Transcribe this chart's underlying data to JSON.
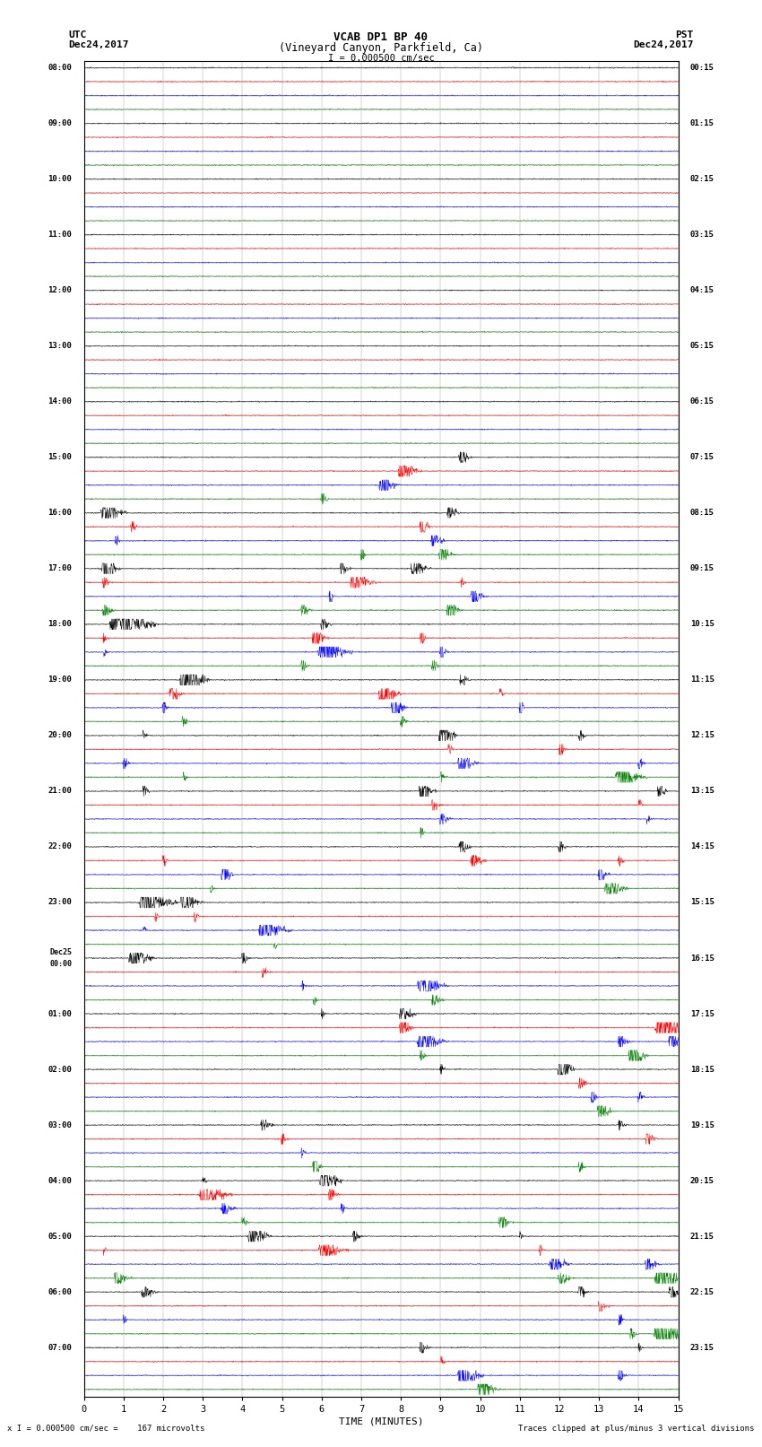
{
  "title_line1": "VCAB DP1 BP 40",
  "title_line2": "(Vineyard Canyon, Parkfield, Ca)",
  "scale_text": "I = 0.000500 cm/sec",
  "utc_label": "UTC",
  "utc_date": "Dec24,2017",
  "pst_label": "PST",
  "pst_date": "Dec24,2017",
  "xlabel": "TIME (MINUTES)",
  "footer_left": "x I = 0.000500 cm/sec =    167 microvolts",
  "footer_right": "Traces clipped at plus/minus 3 vertical divisions",
  "utc_times": [
    "08:00",
    "09:00",
    "10:00",
    "11:00",
    "12:00",
    "13:00",
    "14:00",
    "15:00",
    "16:00",
    "17:00",
    "18:00",
    "19:00",
    "20:00",
    "21:00",
    "22:00",
    "23:00",
    "Dec25\n00:00",
    "01:00",
    "02:00",
    "03:00",
    "04:00",
    "05:00",
    "06:00",
    "07:00"
  ],
  "pst_times": [
    "00:15",
    "01:15",
    "02:15",
    "03:15",
    "04:15",
    "05:15",
    "06:15",
    "07:15",
    "08:15",
    "09:15",
    "10:15",
    "11:15",
    "12:15",
    "13:15",
    "14:15",
    "15:15",
    "16:15",
    "17:15",
    "18:15",
    "19:15",
    "20:15",
    "21:15",
    "22:15",
    "23:15"
  ],
  "trace_colors": [
    "black",
    "red",
    "blue",
    "green"
  ],
  "background_color": "#f0f0f0",
  "plot_bg_color": "#d8d8d8",
  "grid_color": "#888888",
  "n_hour_blocks": 24,
  "traces_per_block": 4,
  "time_minutes": 15,
  "n_pts": 1800,
  "amp_noise": 0.018,
  "amp_clip": 0.38,
  "seed": 12345,
  "event_rows": [
    [
      28,
      0,
      9.5,
      0.9
    ],
    [
      29,
      1,
      8.0,
      1.2
    ],
    [
      30,
      2,
      7.5,
      1.0
    ],
    [
      31,
      3,
      6.0,
      0.8
    ],
    [
      32,
      0,
      0.5,
      1.4
    ],
    [
      32,
      0,
      9.2,
      0.7
    ],
    [
      33,
      1,
      1.2,
      0.5
    ],
    [
      33,
      1,
      8.5,
      1.3
    ],
    [
      34,
      2,
      0.8,
      0.6
    ],
    [
      34,
      2,
      8.8,
      1.1
    ],
    [
      35,
      3,
      7.0,
      0.9
    ],
    [
      35,
      3,
      9.0,
      1.0
    ],
    [
      36,
      0,
      0.5,
      1.5
    ],
    [
      36,
      0,
      6.5,
      0.8
    ],
    [
      36,
      0,
      8.3,
      1.0
    ],
    [
      37,
      1,
      0.5,
      0.6
    ],
    [
      37,
      1,
      6.8,
      1.4
    ],
    [
      37,
      1,
      9.5,
      0.8
    ],
    [
      38,
      2,
      6.2,
      1.2
    ],
    [
      38,
      2,
      9.8,
      0.9
    ],
    [
      39,
      3,
      0.5,
      0.7
    ],
    [
      39,
      3,
      5.5,
      0.8
    ],
    [
      39,
      3,
      9.2,
      1.0
    ],
    [
      40,
      0,
      0.8,
      2.2
    ],
    [
      40,
      0,
      6.0,
      0.9
    ],
    [
      41,
      1,
      0.5,
      0.5
    ],
    [
      41,
      1,
      5.8,
      1.5
    ],
    [
      41,
      1,
      8.5,
      0.7
    ],
    [
      42,
      2,
      0.5,
      0.4
    ],
    [
      42,
      2,
      6.0,
      1.8
    ],
    [
      42,
      2,
      9.0,
      0.8
    ],
    [
      43,
      3,
      5.5,
      0.9
    ],
    [
      43,
      3,
      8.8,
      0.6
    ],
    [
      44,
      0,
      2.5,
      2.5
    ],
    [
      44,
      0,
      9.5,
      1.0
    ],
    [
      45,
      1,
      2.2,
      1.0
    ],
    [
      45,
      1,
      7.5,
      2.0
    ],
    [
      45,
      1,
      10.5,
      0.7
    ],
    [
      46,
      2,
      2.0,
      0.8
    ],
    [
      46,
      2,
      7.8,
      1.5
    ],
    [
      46,
      2,
      11.0,
      0.9
    ],
    [
      47,
      3,
      2.5,
      0.6
    ],
    [
      47,
      3,
      8.0,
      0.7
    ],
    [
      48,
      0,
      1.5,
      0.5
    ],
    [
      48,
      0,
      9.0,
      1.8
    ],
    [
      48,
      0,
      12.5,
      0.6
    ],
    [
      49,
      1,
      9.2,
      0.8
    ],
    [
      49,
      1,
      12.0,
      1.2
    ],
    [
      50,
      2,
      1.0,
      0.9
    ],
    [
      50,
      2,
      9.5,
      1.0
    ],
    [
      50,
      2,
      14.0,
      0.7
    ],
    [
      51,
      3,
      2.5,
      0.5
    ],
    [
      51,
      3,
      9.0,
      0.8
    ],
    [
      51,
      3,
      13.5,
      1.5
    ],
    [
      52,
      0,
      1.5,
      0.8
    ],
    [
      52,
      0,
      8.5,
      1.5
    ],
    [
      52,
      0,
      14.5,
      0.9
    ],
    [
      53,
      1,
      8.8,
      0.7
    ],
    [
      53,
      1,
      14.0,
      0.6
    ],
    [
      54,
      2,
      9.0,
      0.8
    ],
    [
      54,
      2,
      14.2,
      0.5
    ],
    [
      55,
      3,
      8.5,
      0.6
    ],
    [
      56,
      0,
      9.5,
      1.2
    ],
    [
      56,
      0,
      12.0,
      0.7
    ],
    [
      57,
      1,
      2.0,
      0.5
    ],
    [
      57,
      1,
      9.8,
      1.0
    ],
    [
      57,
      1,
      13.5,
      0.6
    ],
    [
      58,
      2,
      3.5,
      1.8
    ],
    [
      58,
      2,
      13.0,
      0.8
    ],
    [
      59,
      3,
      3.2,
      0.4
    ],
    [
      59,
      3,
      13.2,
      1.4
    ],
    [
      60,
      0,
      1.5,
      1.8
    ],
    [
      60,
      0,
      2.5,
      1.2
    ],
    [
      61,
      1,
      1.8,
      0.5
    ],
    [
      61,
      1,
      2.8,
      0.9
    ],
    [
      62,
      2,
      1.5,
      0.4
    ],
    [
      62,
      2,
      4.5,
      1.6
    ],
    [
      63,
      3,
      4.8,
      0.5
    ],
    [
      64,
      0,
      1.2,
      1.5
    ],
    [
      64,
      0,
      4.0,
      0.6
    ],
    [
      65,
      1,
      4.5,
      0.5
    ],
    [
      66,
      2,
      5.5,
      0.6
    ],
    [
      66,
      2,
      8.5,
      1.4
    ],
    [
      67,
      3,
      5.8,
      0.5
    ],
    [
      67,
      3,
      8.8,
      0.8
    ],
    [
      68,
      0,
      6.0,
      0.5
    ],
    [
      68,
      0,
      8.0,
      2.0
    ],
    [
      69,
      1,
      8.0,
      1.2
    ],
    [
      69,
      1,
      14.5,
      2.8
    ],
    [
      70,
      2,
      8.5,
      1.5
    ],
    [
      70,
      2,
      13.5,
      1.0
    ],
    [
      70,
      2,
      14.8,
      0.9
    ],
    [
      71,
      3,
      8.5,
      0.7
    ],
    [
      71,
      3,
      13.8,
      1.8
    ],
    [
      72,
      0,
      9.0,
      0.5
    ],
    [
      72,
      0,
      12.0,
      2.5
    ],
    [
      73,
      1,
      12.5,
      0.8
    ],
    [
      74,
      2,
      12.8,
      1.2
    ],
    [
      74,
      2,
      14.0,
      0.6
    ],
    [
      75,
      3,
      13.0,
      1.5
    ],
    [
      76,
      0,
      4.5,
      0.8
    ],
    [
      76,
      0,
      13.5,
      0.5
    ],
    [
      77,
      1,
      5.0,
      0.6
    ],
    [
      77,
      1,
      14.2,
      0.6
    ],
    [
      78,
      2,
      5.5,
      0.5
    ],
    [
      79,
      3,
      5.8,
      1.2
    ],
    [
      79,
      3,
      12.5,
      0.6
    ],
    [
      80,
      0,
      3.0,
      0.5
    ],
    [
      80,
      0,
      6.0,
      1.8
    ],
    [
      81,
      1,
      3.0,
      1.5
    ],
    [
      81,
      1,
      6.2,
      0.8
    ],
    [
      82,
      2,
      3.5,
      0.8
    ],
    [
      82,
      2,
      6.5,
      0.5
    ],
    [
      83,
      3,
      4.0,
      0.5
    ],
    [
      83,
      3,
      10.5,
      0.8
    ],
    [
      84,
      0,
      4.2,
      1.4
    ],
    [
      84,
      0,
      6.8,
      0.6
    ],
    [
      84,
      0,
      11.0,
      0.5
    ],
    [
      85,
      1,
      0.5,
      0.5
    ],
    [
      85,
      1,
      6.0,
      1.5
    ],
    [
      85,
      1,
      11.5,
      0.6
    ],
    [
      86,
      2,
      11.8,
      1.2
    ],
    [
      86,
      2,
      14.2,
      0.8
    ],
    [
      87,
      3,
      0.8,
      1.0
    ],
    [
      87,
      3,
      12.0,
      0.8
    ],
    [
      87,
      3,
      14.5,
      2.5
    ],
    [
      88,
      0,
      1.5,
      0.8
    ],
    [
      88,
      0,
      12.5,
      0.6
    ],
    [
      88,
      0,
      14.8,
      0.9
    ],
    [
      89,
      1,
      13.0,
      0.7
    ],
    [
      90,
      2,
      1.0,
      0.5
    ],
    [
      90,
      2,
      13.5,
      0.8
    ],
    [
      91,
      3,
      13.8,
      0.9
    ],
    [
      91,
      3,
      14.5,
      1.8
    ],
    [
      92,
      0,
      8.5,
      0.6
    ],
    [
      92,
      0,
      14.0,
      0.5
    ],
    [
      93,
      1,
      9.0,
      0.5
    ],
    [
      94,
      2,
      9.5,
      1.8
    ],
    [
      94,
      2,
      13.5,
      0.7
    ],
    [
      95,
      3,
      10.0,
      1.5
    ]
  ]
}
